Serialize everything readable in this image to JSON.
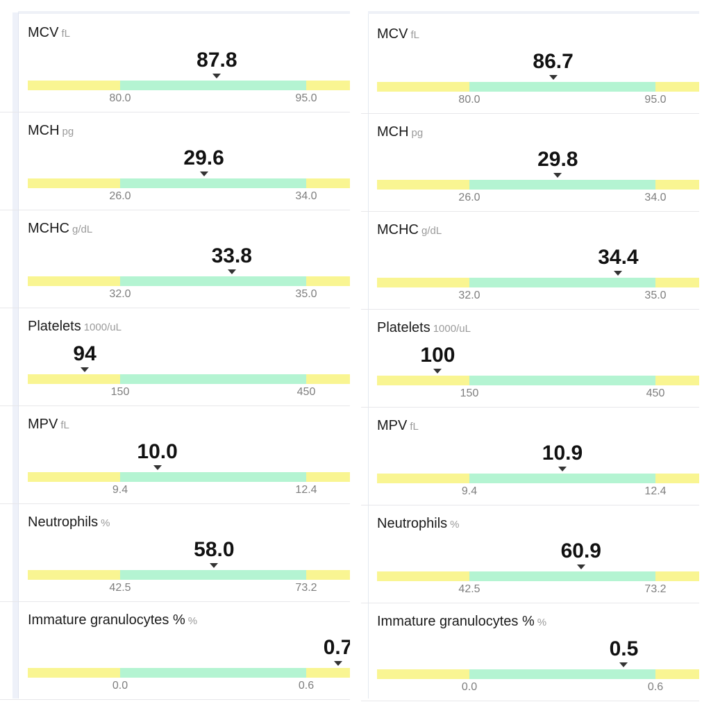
{
  "panels": [
    {
      "side": "left",
      "items": [
        {
          "id": "mcv",
          "name": "MCV",
          "unit": "fL",
          "value": "87.8",
          "low": "80.0",
          "high": "95.0",
          "pos": 0.52
        },
        {
          "id": "mch",
          "name": "MCH",
          "unit": "pg",
          "value": "29.6",
          "low": "26.0",
          "high": "34.0",
          "pos": 0.45
        },
        {
          "id": "mchc",
          "name": "MCHC",
          "unit": "g/dL",
          "value": "33.8",
          "low": "32.0",
          "high": "35.0",
          "pos": 0.6
        },
        {
          "id": "platelets",
          "name": "Platelets",
          "unit": "1000/uL",
          "value": "94",
          "low": "150",
          "high": "450",
          "pos": -0.19
        },
        {
          "id": "mpv",
          "name": "MPV",
          "unit": "fL",
          "value": "10.0",
          "low": "9.4",
          "high": "12.4",
          "pos": 0.2
        },
        {
          "id": "neutrophils",
          "name": "Neutrophils",
          "unit": "%",
          "value": "58.0",
          "low": "42.5",
          "high": "73.2",
          "pos": 0.505
        },
        {
          "id": "immature",
          "name": "Immature granulocytes %",
          "unit": "%",
          "value": "0.7",
          "low": "0.0",
          "high": "0.6",
          "pos": 1.17
        }
      ]
    },
    {
      "side": "right",
      "items": [
        {
          "id": "mcv",
          "name": "MCV",
          "unit": "fL",
          "value": "86.7",
          "low": "80.0",
          "high": "95.0",
          "pos": 0.45
        },
        {
          "id": "mch",
          "name": "MCH",
          "unit": "pg",
          "value": "29.8",
          "low": "26.0",
          "high": "34.0",
          "pos": 0.475
        },
        {
          "id": "mchc",
          "name": "MCHC",
          "unit": "g/dL",
          "value": "34.4",
          "low": "32.0",
          "high": "35.0",
          "pos": 0.8
        },
        {
          "id": "platelets",
          "name": "Platelets",
          "unit": "1000/uL",
          "value": "100",
          "low": "150",
          "high": "450",
          "pos": -0.17
        },
        {
          "id": "mpv",
          "name": "MPV",
          "unit": "fL",
          "value": "10.9",
          "low": "9.4",
          "high": "12.4",
          "pos": 0.5
        },
        {
          "id": "neutrophils",
          "name": "Neutrophils",
          "unit": "%",
          "value": "60.9",
          "low": "42.5",
          "high": "73.2",
          "pos": 0.6
        },
        {
          "id": "immature",
          "name": "Immature granulocytes %",
          "unit": "%",
          "value": "0.5",
          "low": "0.0",
          "high": "0.6",
          "pos": 0.83
        }
      ]
    }
  ],
  "colors": {
    "out_of_range": "#f9f592",
    "in_range": "#b4f4d2",
    "marker": "#333333"
  }
}
